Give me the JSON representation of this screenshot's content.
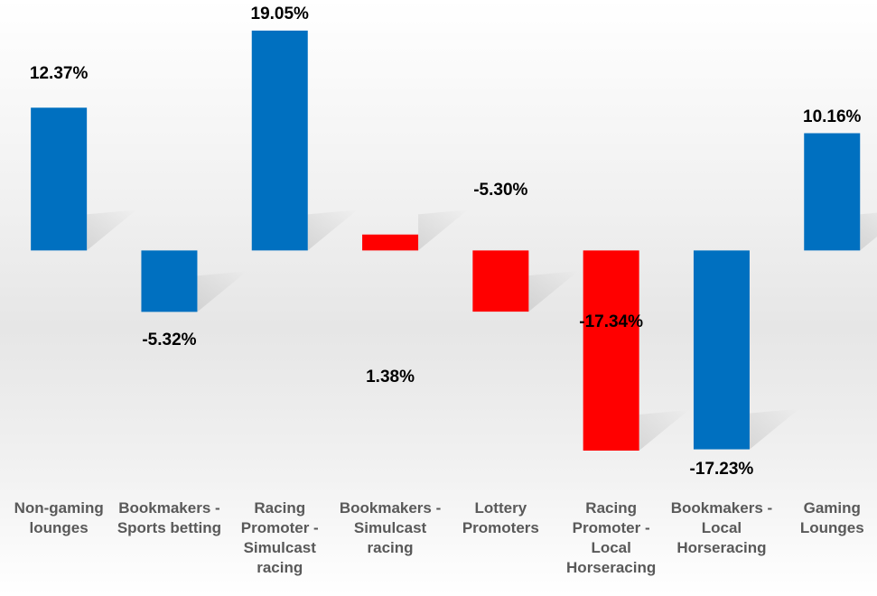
{
  "chart_data": {
    "type": "bar",
    "categories": [
      "Non-gaming lounges",
      "Bookmakers - Sports betting",
      "Racing Promoter - Simulcast racing",
      "Bookmakers - Simulcast racing",
      "Lottery Promoters",
      "Racing Promoter - Local Horseracing",
      "Bookmakers - Local Horseracing",
      "Gaming Lounges"
    ],
    "values": [
      12.37,
      -5.32,
      19.05,
      1.38,
      -5.3,
      -17.34,
      -17.23,
      10.16
    ],
    "value_labels": [
      "12.37%",
      "-5.32%",
      "19.05%",
      "1.38%",
      "-5.30%",
      "-17.34%",
      "-17.23%",
      "10.16%"
    ],
    "colors": [
      "#0070c0",
      "#0070c0",
      "#0070c0",
      "#ff0000",
      "#ff0000",
      "#ff0000",
      "#0070c0",
      "#0070c0"
    ],
    "ylim": [
      -21.8,
      21.7
    ]
  }
}
